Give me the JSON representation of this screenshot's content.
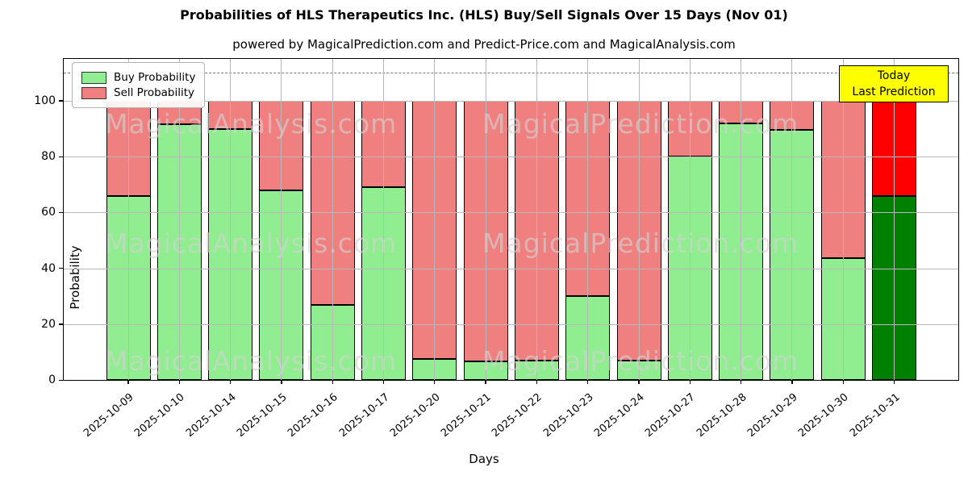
{
  "header": {
    "title": "Probabilities of HLS Therapeutics Inc. (HLS) Buy/Sell Signals Over 15 Days (Nov 01)",
    "subtitle": "powered by MagicalPrediction.com and Predict-Price.com and MagicalAnalysis.com"
  },
  "legend": {
    "buy_label": "Buy Probability",
    "sell_label": "Sell Probability"
  },
  "annotation": {
    "line1": "Today",
    "line2": "Last Prediction",
    "bg_color": "#ffff00"
  },
  "axes": {
    "xlabel": "Days",
    "ylabel": "Probability",
    "yticks": [
      0,
      20,
      40,
      60,
      80,
      100
    ]
  },
  "watermarks": [
    "MagicalAnalysis.com",
    "MagicalPrediction.com"
  ],
  "colors": {
    "buy": "#90ee90",
    "sell": "#f08080",
    "last_buy": "#008000",
    "last_sell": "#ff0000",
    "bar_edge": "#000000",
    "grid": "#b9b9b9",
    "reference_line": "#7a7a7a"
  },
  "chart_data": {
    "type": "bar",
    "stacked": true,
    "title": "Probabilities of HLS Therapeutics Inc. (HLS) Buy/Sell Signals Over 15 Days (Nov 01)",
    "xlabel": "Days",
    "ylabel": "Probability",
    "ylim": [
      0,
      115
    ],
    "grid": true,
    "legend_position": "upper left",
    "reference_line_y": 110,
    "categories": [
      "2025-10-09",
      "2025-10-10",
      "2025-10-14",
      "2025-10-15",
      "2025-10-16",
      "2025-10-17",
      "2025-10-20",
      "2025-10-21",
      "2025-10-22",
      "2025-10-23",
      "2025-10-24",
      "2025-10-27",
      "2025-10-28",
      "2025-10-29",
      "2025-10-30",
      "2025-10-31"
    ],
    "series": [
      {
        "name": "Buy Probability",
        "color": "#90ee90",
        "values": [
          66,
          91.5,
          90,
          68,
          27,
          69,
          7.5,
          6.5,
          7,
          30,
          7,
          80,
          92,
          89.5,
          43.5,
          66
        ]
      },
      {
        "name": "Sell Probability",
        "color": "#f08080",
        "values": [
          34,
          8.5,
          10,
          32,
          73,
          31,
          92.5,
          93.5,
          93,
          70,
          93,
          20,
          8,
          10.5,
          56.5,
          34
        ]
      }
    ],
    "last_bar_highlight": {
      "buy_color": "#008000",
      "sell_color": "#ff0000",
      "annotation": "Today / Last Prediction"
    }
  }
}
